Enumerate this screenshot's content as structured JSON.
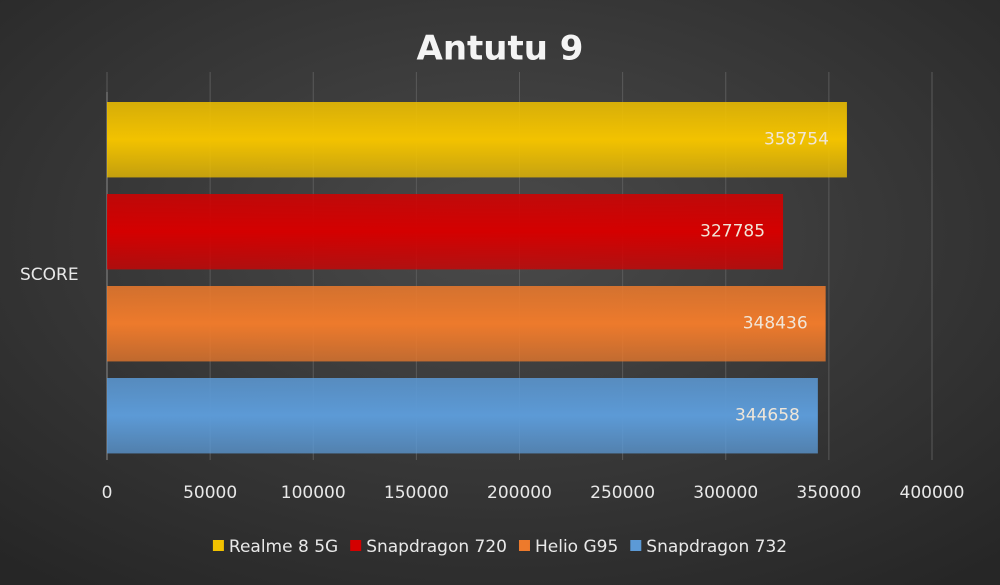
{
  "chart_data": {
    "type": "bar",
    "orientation": "horizontal",
    "title": "Antutu 9",
    "categories": [
      "SCORE"
    ],
    "series": [
      {
        "name": "Realme 8 5G",
        "color": "#f2c200",
        "values": [
          358754
        ]
      },
      {
        "name": "Snapdragon 720",
        "color": "#d40000",
        "values": [
          327785
        ]
      },
      {
        "name": "Helio G95",
        "color": "#ed7a2c",
        "values": [
          348436
        ]
      },
      {
        "name": "Snapdragon 732",
        "color": "#5c9ad6",
        "values": [
          344658
        ]
      }
    ],
    "xlim": [
      0,
      400000
    ],
    "xticks": [
      0,
      50000,
      100000,
      150000,
      200000,
      250000,
      300000,
      350000,
      400000
    ],
    "grid": true,
    "legend": "bottom"
  }
}
